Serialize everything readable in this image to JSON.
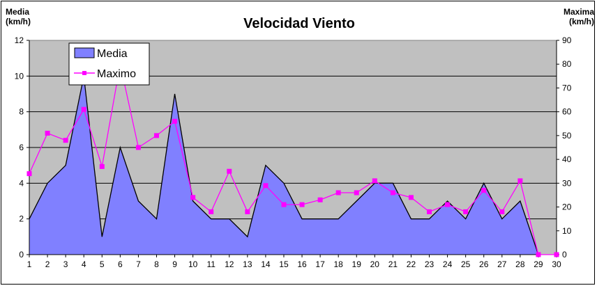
{
  "chart_data": {
    "type": "area",
    "title": "Velocidad Viento",
    "left_axis_label": [
      "Media",
      "(km/h)"
    ],
    "right_axis_label": [
      "Maxima",
      "(km/h)"
    ],
    "categories": [
      "1",
      "2",
      "3",
      "4",
      "5",
      "6",
      "7",
      "8",
      "9",
      "10",
      "11",
      "12",
      "13",
      "14",
      "15",
      "16",
      "17",
      "18",
      "19",
      "20",
      "21",
      "22",
      "23",
      "24",
      "25",
      "26",
      "27",
      "28",
      "29",
      "30"
    ],
    "ylim_left": [
      0,
      12
    ],
    "yticks_left": [
      "0",
      "2",
      "4",
      "6",
      "8",
      "10",
      "12"
    ],
    "ylim_right": [
      0,
      90
    ],
    "yticks_right": [
      "0",
      "10",
      "20",
      "30",
      "40",
      "50",
      "60",
      "70",
      "80",
      "90"
    ],
    "grid": true,
    "legend_position": "top-left",
    "series": [
      {
        "name": "Media",
        "type": "area",
        "axis": "left",
        "color": "#8080ff",
        "values": [
          2,
          4,
          5,
          10,
          1,
          6,
          3,
          2,
          9,
          3,
          2,
          2,
          1,
          5,
          4,
          2,
          2,
          2,
          3,
          4,
          4,
          2,
          2,
          3,
          2,
          4,
          2,
          3,
          0,
          null
        ]
      },
      {
        "name": "Maximo",
        "type": "line",
        "axis": "right",
        "color": "#ff00ff",
        "values": [
          34,
          51,
          48,
          61,
          37,
          80,
          45,
          50,
          56,
          24,
          18,
          35,
          18,
          29,
          21,
          21,
          23,
          26,
          26,
          31,
          26,
          24,
          18,
          21,
          18,
          27,
          18,
          31,
          0,
          0
        ]
      }
    ]
  }
}
